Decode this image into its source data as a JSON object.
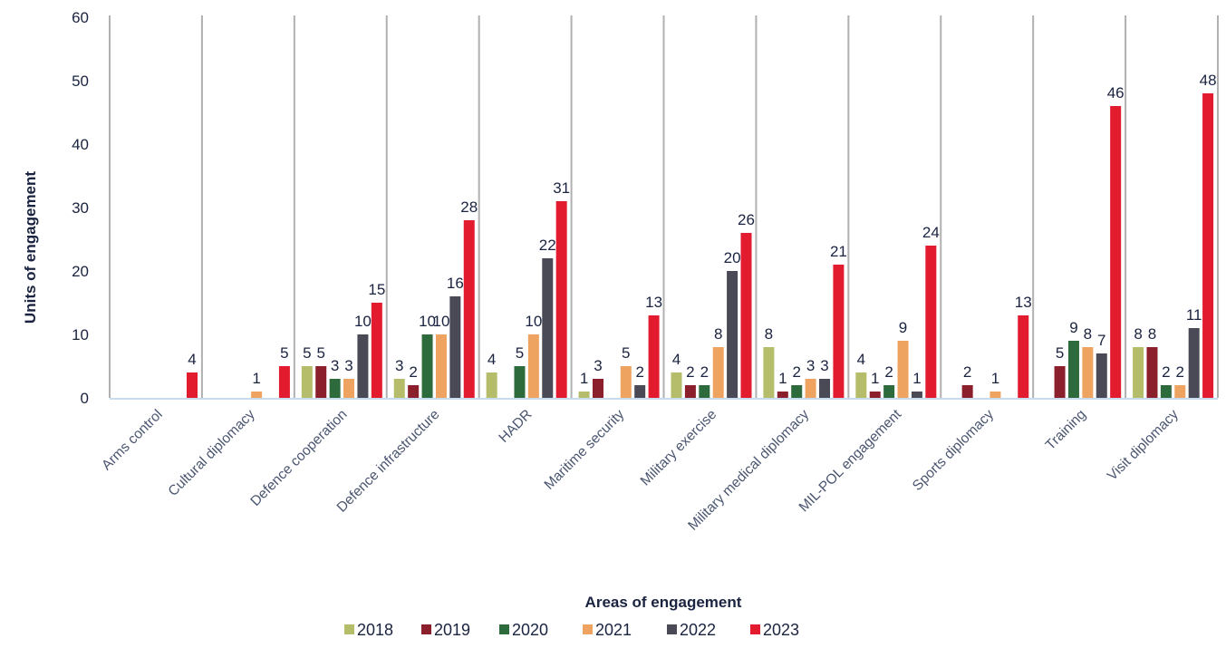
{
  "chart_data": {
    "type": "bar",
    "title": "",
    "xlabel": "Areas of engagement",
    "ylabel": "Units of engagement",
    "ylim": [
      0,
      60
    ],
    "yticks": [
      0,
      10,
      20,
      30,
      40,
      50,
      60
    ],
    "grid": "vertical category dividers",
    "legend_position": "bottom",
    "categories": [
      "Arms control",
      "Cultural diplomacy",
      "Defence cooperation",
      "Defence infrastructure",
      "HADR",
      "Maritime security",
      "Military exercise",
      "Military medical diplomacy",
      "MIL-POL engagement",
      "Sports diplomacy",
      "Training",
      "Visit diplomacy"
    ],
    "series": [
      {
        "name": "2018",
        "color": "#b5bd6a",
        "values": [
          0,
          0,
          5,
          3,
          4,
          1,
          4,
          8,
          4,
          0,
          0,
          8
        ]
      },
      {
        "name": "2019",
        "color": "#8b1f2b",
        "values": [
          0,
          0,
          5,
          2,
          0,
          3,
          2,
          1,
          1,
          2,
          5,
          8
        ]
      },
      {
        "name": "2020",
        "color": "#2d6a3c",
        "values": [
          0,
          0,
          3,
          10,
          5,
          0,
          2,
          2,
          2,
          0,
          9,
          2
        ]
      },
      {
        "name": "2021",
        "color": "#eea460",
        "values": [
          0,
          1,
          3,
          10,
          10,
          5,
          8,
          3,
          9,
          1,
          8,
          2
        ]
      },
      {
        "name": "2022",
        "color": "#4a4a56",
        "values": [
          0,
          0,
          10,
          16,
          22,
          2,
          20,
          3,
          1,
          0,
          7,
          11
        ]
      },
      {
        "name": "2023",
        "color": "#e31b2f",
        "values": [
          4,
          5,
          15,
          28,
          31,
          13,
          26,
          21,
          24,
          13,
          46,
          48
        ]
      }
    ]
  }
}
